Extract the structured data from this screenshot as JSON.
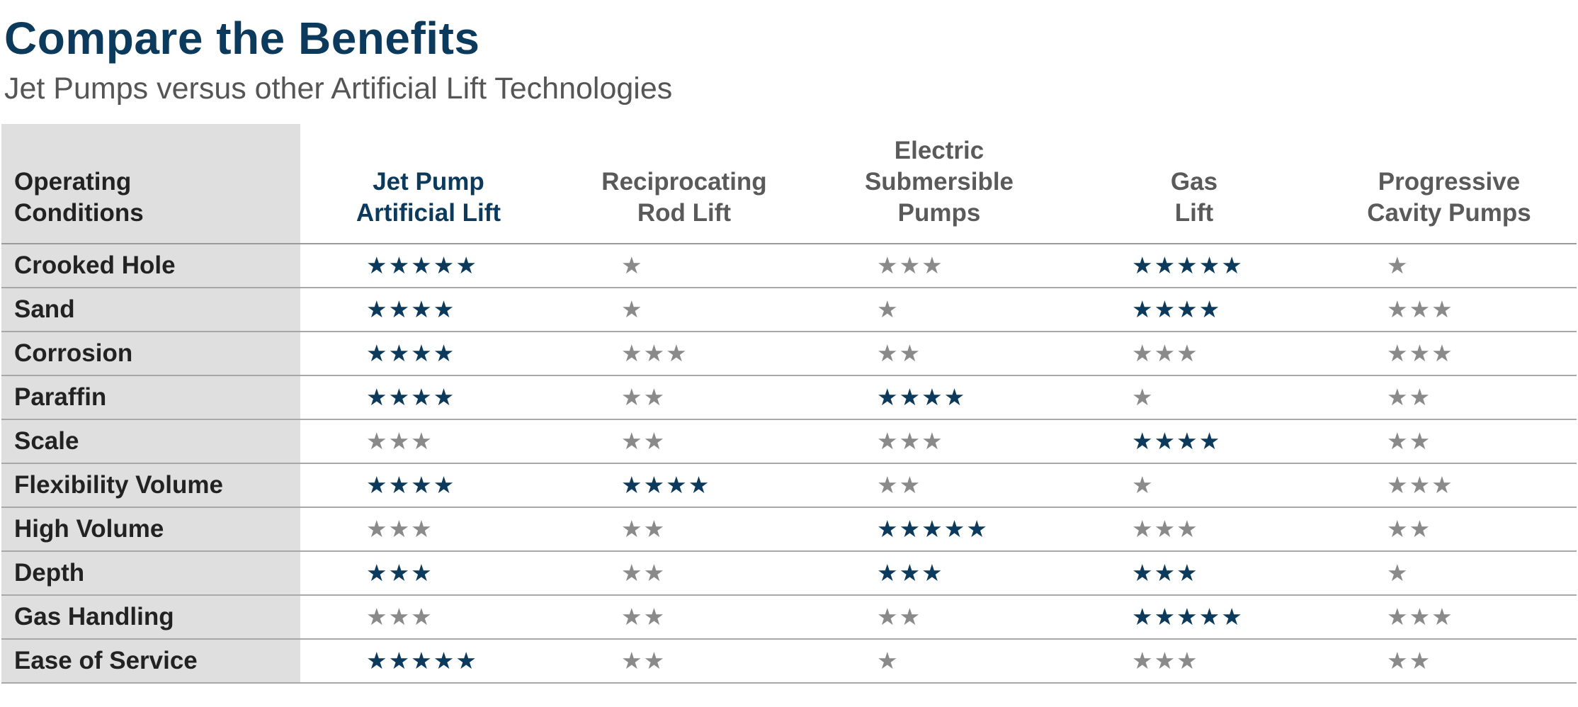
{
  "title": "Compare the Benefits",
  "subtitle": "Jet Pumps versus other Artificial Lift Technologies",
  "colors": {
    "high": "#0b3a5c",
    "low": "#8a8a8a"
  },
  "columns": [
    "Operating\nConditions",
    "Jet Pump\nArtificial Lift",
    "Reciprocating\nRod Lift",
    "Electric\nSubmersible\nPumps",
    "Gas\nLift",
    "Progressive\nCavity Pumps"
  ],
  "rows": [
    {
      "label": "Crooked Hole",
      "ratings": [
        5,
        1,
        3,
        5,
        1
      ]
    },
    {
      "label": "Sand",
      "ratings": [
        4,
        1,
        1,
        4,
        3
      ]
    },
    {
      "label": "Corrosion",
      "ratings": [
        4,
        3,
        2,
        3,
        3
      ]
    },
    {
      "label": "Paraffin",
      "ratings": [
        4,
        2,
        4,
        1,
        2
      ]
    },
    {
      "label": "Scale",
      "ratings": [
        3,
        2,
        3,
        4,
        2
      ]
    },
    {
      "label": "Flexibility Volume",
      "ratings": [
        4,
        4,
        2,
        1,
        3
      ]
    },
    {
      "label": "High Volume",
      "ratings": [
        3,
        2,
        5,
        3,
        2
      ]
    },
    {
      "label": "Depth",
      "ratings": [
        3,
        2,
        3,
        3,
        1
      ]
    },
    {
      "label": "Gas Handling",
      "ratings": [
        3,
        2,
        2,
        5,
        3
      ]
    },
    {
      "label": "Ease of Service",
      "ratings": [
        5,
        2,
        1,
        3,
        2
      ]
    }
  ]
}
